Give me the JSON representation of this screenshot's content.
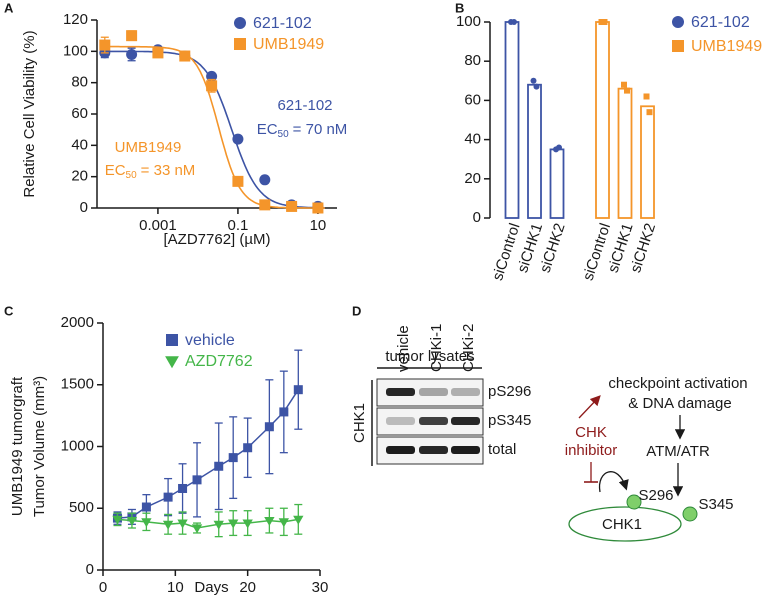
{
  "panel_labels": [
    "A",
    "B",
    "C",
    "D"
  ],
  "chart_data": [
    {
      "type": "dose_response",
      "xlabel": "[AZD7762] (µM)",
      "ylabel": "Relative Cell Viability (%)",
      "xscale": "log",
      "xlim": [
        3e-05,
        30
      ],
      "xticks": [
        0.001,
        0.1,
        10
      ],
      "ylim": [
        0,
        120
      ],
      "yticks": [
        0,
        20,
        40,
        60,
        80,
        100,
        120
      ],
      "legend": "upper right",
      "series": [
        {
          "name": "621-102",
          "color": "#3d54a5",
          "marker": "circle",
          "x": [
            4.7e-05,
            0.00022,
            0.001,
            0.0047,
            0.022,
            0.1,
            0.47,
            2.2,
            10
          ],
          "values": [
            99,
            98,
            101,
            97,
            84,
            44,
            18,
            2,
            1
          ],
          "errors": [
            3,
            4,
            2,
            2,
            2,
            2,
            2,
            1,
            1
          ],
          "fit": {
            "ec50": 0.07,
            "hill": 1.3,
            "top": 100,
            "bottom": 0
          }
        },
        {
          "name": "UMB1949",
          "color": "#f4952a",
          "marker": "square",
          "x": [
            4.7e-05,
            0.00022,
            0.001,
            0.0047,
            0.022,
            0.1,
            0.47,
            2.2,
            10
          ],
          "values": [
            104,
            110,
            99,
            97,
            78,
            17,
            2,
            1,
            0
          ],
          "errors": [
            5,
            3,
            2,
            2,
            4,
            2,
            1,
            1,
            1
          ],
          "fit": {
            "ec50": 0.033,
            "hill": 1.6,
            "top": 103,
            "bottom": 0
          }
        }
      ],
      "annotations": [
        {
          "color": "#3d54a5",
          "lines": [
            "621-102",
            [
              "EC",
              "50",
              "= 70 nM"
            ]
          ]
        },
        {
          "color": "#f4952a",
          "lines": [
            "UMB1949",
            [
              "EC",
              "50",
              "= 33 nM"
            ]
          ]
        }
      ]
    },
    {
      "type": "bar",
      "ylim": [
        0,
        100
      ],
      "yticks": [
        0,
        20,
        40,
        60,
        80,
        100
      ],
      "legend": "right",
      "categories": [
        "siControl",
        "siCHK1",
        "siCHK2",
        "siControl",
        "siCHK1",
        "siCHK2"
      ],
      "series": [
        {
          "name": "621-102",
          "color": "#3d54a5",
          "marker": "circle",
          "values": [
            100,
            68,
            35,
            null,
            null,
            null
          ],
          "points": [
            [
              100,
              100
            ],
            [
              70,
              67
            ],
            [
              35,
              36
            ],
            null,
            null,
            null
          ]
        },
        {
          "name": "UMB1949",
          "color": "#f4952a",
          "marker": "square",
          "values": [
            null,
            null,
            null,
            100,
            66,
            57
          ],
          "points": [
            null,
            null,
            null,
            [
              100,
              100
            ],
            [
              68,
              65
            ],
            [
              62,
              54
            ]
          ]
        }
      ]
    },
    {
      "type": "line",
      "xlabel": "Days",
      "ylabel": [
        "UMB1949 tumorgraft",
        "Tumor Volume (mm³)"
      ],
      "xlim": [
        0,
        30
      ],
      "xticks": [
        0,
        10,
        20,
        30
      ],
      "ylim": [
        0,
        2000
      ],
      "yticks": [
        0,
        500,
        1000,
        1500,
        2000
      ],
      "legend": "upper left",
      "series": [
        {
          "name": "vehicle",
          "color": "#3d54a5",
          "marker": "square",
          "x": [
            2,
            4,
            6,
            9,
            11,
            13,
            16,
            18,
            20,
            23,
            25,
            27
          ],
          "values": [
            420,
            430,
            510,
            590,
            660,
            730,
            840,
            910,
            990,
            1160,
            1280,
            1460
          ],
          "errors": [
            50,
            60,
            100,
            150,
            200,
            300,
            350,
            330,
            240,
            380,
            330,
            320
          ]
        },
        {
          "name": "AZD7762",
          "color": "#44b649",
          "marker": "triangle-down",
          "x": [
            2,
            4,
            6,
            9,
            11,
            13,
            16,
            18,
            20,
            23,
            25,
            27
          ],
          "values": [
            410,
            400,
            390,
            370,
            380,
            340,
            370,
            380,
            380,
            400,
            390,
            410
          ],
          "errors": [
            50,
            60,
            70,
            80,
            90,
            40,
            100,
            100,
            100,
            100,
            110,
            120
          ]
        }
      ]
    }
  ],
  "blot": {
    "header": "tumor lysates",
    "lanes": [
      "vehicle",
      "CHKi-1",
      "CHKi-2"
    ],
    "rows": [
      "pS296",
      "pS345",
      "total"
    ],
    "group": "CHK1"
  },
  "diagram": {
    "trigger": [
      "checkpoint activation",
      "& DNA damage"
    ],
    "kinase": "ATM/ATR",
    "inhibitor": [
      "CHK",
      "inhibitor"
    ],
    "sites": [
      "S296",
      "S345"
    ],
    "protein": "CHK1"
  }
}
